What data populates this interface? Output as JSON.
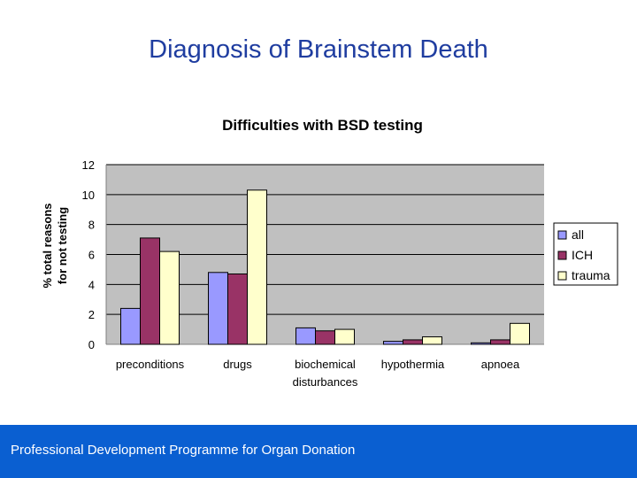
{
  "slide": {
    "title": "Diagnosis of Brainstem Death",
    "footer": "Professional Development Programme for Organ Donation"
  },
  "chart_data": {
    "type": "bar",
    "title": "Difficulties with BSD testing",
    "xlabel": "",
    "ylabel": [
      "% total reasons",
      "for not testing"
    ],
    "ylim": [
      0,
      12
    ],
    "yticks": [
      0,
      2,
      4,
      6,
      8,
      10,
      12
    ],
    "grid": true,
    "legend_position": "right",
    "categories": [
      [
        "preconditions"
      ],
      [
        "drugs"
      ],
      [
        "biochemical",
        "disturbances"
      ],
      [
        "hypothermia"
      ],
      [
        "apnoea"
      ]
    ],
    "series": [
      {
        "name": "all",
        "color": "#9999ff",
        "values": [
          2.4,
          4.8,
          1.1,
          0.2,
          0.1
        ]
      },
      {
        "name": "ICH",
        "color": "#993366",
        "values": [
          7.1,
          4.7,
          0.9,
          0.3,
          0.3
        ]
      },
      {
        "name": "trauma",
        "color": "#ffffcc",
        "values": [
          6.2,
          10.3,
          1.0,
          0.5,
          1.4
        ]
      }
    ]
  }
}
